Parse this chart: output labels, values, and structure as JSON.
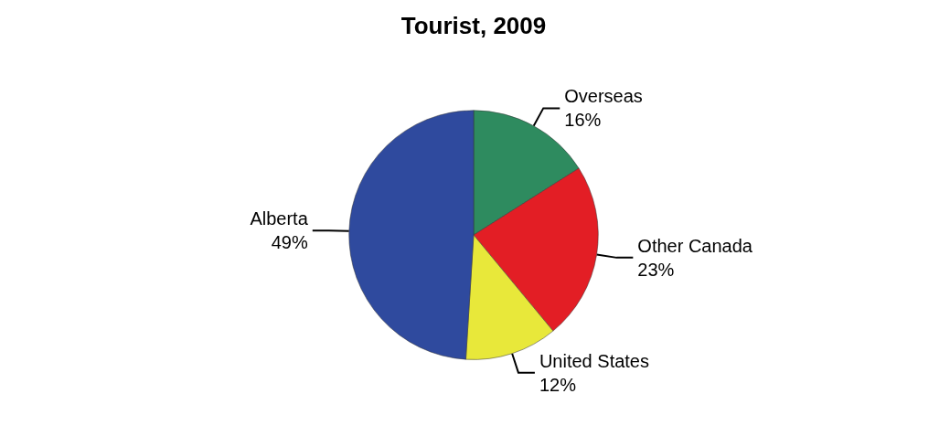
{
  "chart_data": {
    "type": "pie",
    "title": "Tourist, 2009",
    "categories": [
      "Overseas",
      "Other Canada",
      "United States",
      "Alberta"
    ],
    "values": [
      16,
      23,
      12,
      49
    ],
    "value_labels": [
      "16%",
      "23%",
      "12%",
      "49%"
    ],
    "colors": [
      "#2e8b5f",
      "#e31e25",
      "#e8e83a",
      "#2f4a9e"
    ]
  }
}
